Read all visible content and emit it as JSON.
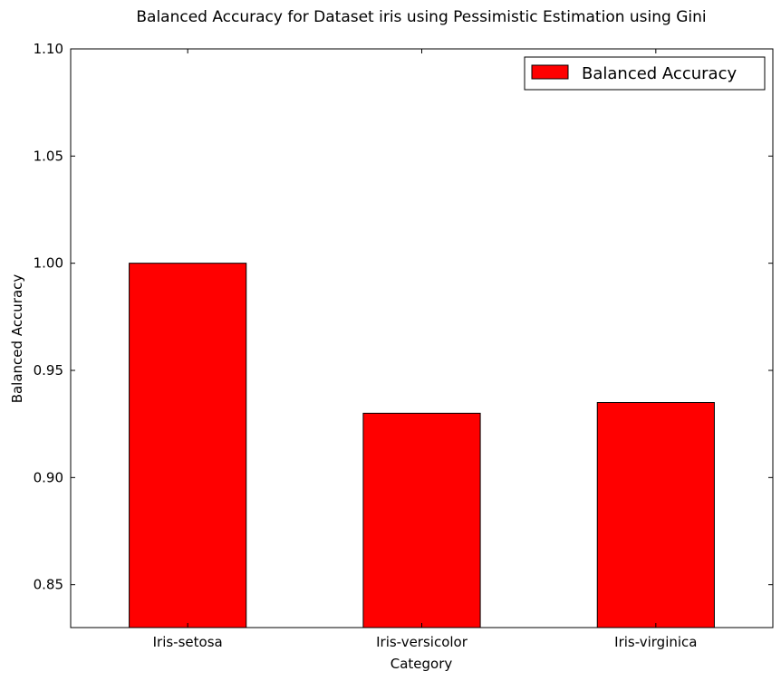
{
  "chart_data": {
    "type": "bar",
    "title": "Balanced Accuracy for Dataset iris using Pessimistic Estimation using Gini",
    "xlabel": "Category",
    "ylabel": "Balanced Accuracy",
    "categories": [
      "Iris-setosa",
      "Iris-versicolor",
      "Iris-virginica"
    ],
    "series": [
      {
        "name": "Balanced Accuracy",
        "values": [
          1.0,
          0.93,
          0.935
        ]
      }
    ],
    "ylim": [
      0.83,
      1.1
    ],
    "yticks": [
      "0.85",
      "0.90",
      "0.95",
      "1.00",
      "1.05",
      "1.10"
    ],
    "grid": false,
    "legend": "top-right",
    "colors": {
      "bar": "#ff0000",
      "edge": "#000000"
    }
  }
}
